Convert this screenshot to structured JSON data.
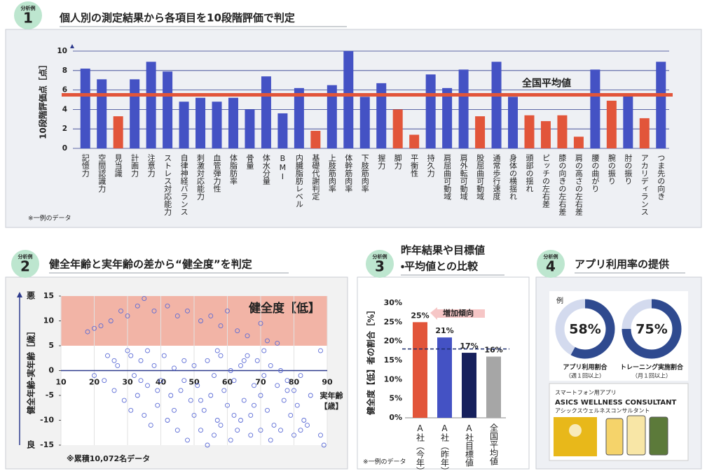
{
  "panels": [
    {
      "badge": "分析例",
      "number": "1",
      "title": [
        "個人別の測定結果から各項目を10段階評価で判定"
      ],
      "note": "※一例のデータ"
    },
    {
      "badge": "分析例",
      "number": "2",
      "title": [
        "健全年齢と実年齢の差から“健全度”を判定"
      ],
      "note": "※累積10,072名データ"
    },
    {
      "badge": "分析例",
      "number": "3",
      "title": [
        "昨年結果や目標値",
        "・平均値との比較"
      ],
      "note": "※一例のデータ"
    },
    {
      "badge": "分析例",
      "number": "4",
      "title": [
        "アプリ利用率の提供"
      ],
      "example": "例",
      "app": {
        "caption": "スマートフォン用アプリ",
        "name": "ASICS WELLNESS CONSULTANT",
        "name_kana": "アシックスウェルネスコンサルタント"
      }
    }
  ],
  "chart_data": [
    {
      "type": "bar",
      "ylabel": "10段階評価点［点］",
      "categories": [
        "記憶力",
        "空間認識力",
        "見当識",
        "計画力",
        "注意力",
        "ストレス対応能力",
        "自律神経バランス",
        "刺激対応能力",
        "血管弾力性",
        "体脂肪率",
        "骨量",
        "体水分量",
        "BMI",
        "内臓脂肪レベル",
        "基礎代謝判定",
        "上肢筋肉率",
        "体幹筋肉率",
        "下肢筋肉率",
        "握力",
        "脚力",
        "平衡性",
        "持久力",
        "肩屈曲可動域",
        "肩外転可動域",
        "股屈曲可動域",
        "通常歩行速度",
        "身体の横揺れ",
        "頭部の揺れ",
        "ピッチの左右差",
        "膝の向きの左右差",
        "肩の高さの左右差",
        "腰の曲がり",
        "腕の振り",
        "肘の振り",
        "アカリディランス",
        "つま先の向き"
      ],
      "values": [
        8.2,
        7.1,
        3.3,
        7.1,
        8.9,
        7.9,
        4.8,
        5.2,
        4.8,
        5.2,
        4.0,
        7.4,
        3.6,
        6.2,
        1.8,
        6.5,
        10,
        5.3,
        6.7,
        4.0,
        1.4,
        7.6,
        6.2,
        8.1,
        3.3,
        8.9,
        5.3,
        3.4,
        2.8,
        3.4,
        1.2,
        8.1,
        4.9,
        5.4,
        3.1,
        8.9
      ],
      "colors": [
        "#4452c4",
        "#4452c4",
        "#e2553a",
        "#4452c4",
        "#4452c4",
        "#4452c4",
        "#4452c4",
        "#4452c4",
        "#4452c4",
        "#4452c4",
        "#4452c4",
        "#4452c4",
        "#4452c4",
        "#4452c4",
        "#e2553a",
        "#4452c4",
        "#4452c4",
        "#4452c4",
        "#4452c4",
        "#e2553a",
        "#e2553a",
        "#4452c4",
        "#4452c4",
        "#4452c4",
        "#e2553a",
        "#4452c4",
        "#4452c4",
        "#e2553a",
        "#e2553a",
        "#e2553a",
        "#e2553a",
        "#4452c4",
        "#e2553a",
        "#4452c4",
        "#e2553a",
        "#4452c4"
      ],
      "ylim": [
        0,
        10
      ],
      "yticks": [
        0,
        2,
        4,
        6,
        8,
        10
      ],
      "grid": true,
      "reference_line": {
        "value": 5.5,
        "label": "全国平均値",
        "color": "#e2553a",
        "dashed": false
      }
    },
    {
      "type": "scatter",
      "ylabel": "健全年齢-実年齢［歳］",
      "y_top_label": "悪",
      "y_bottom_label": "良",
      "xlabel": [
        "実年齢",
        "【歳】"
      ],
      "color": "#5b6bd6",
      "band": {
        "range": [
          5,
          15
        ],
        "label": "健全度【低】",
        "color": "#f2b4a6"
      },
      "x": [
        20,
        22,
        18,
        25,
        28,
        30,
        33,
        35,
        38,
        42,
        45,
        48,
        52,
        55,
        58,
        60,
        63,
        66,
        70,
        72,
        75,
        88,
        24,
        27,
        30,
        32,
        34,
        36,
        38,
        40,
        41,
        43,
        44,
        46,
        47,
        49,
        50,
        51,
        53,
        54,
        55,
        56,
        57,
        58,
        59,
        60,
        61,
        62,
        63,
        64,
        65,
        66,
        67,
        68,
        69,
        70,
        71,
        72,
        73,
        74,
        75,
        76,
        77,
        78,
        79,
        80,
        81,
        82,
        83,
        85,
        88,
        89,
        23,
        26,
        29,
        31,
        33,
        35,
        37,
        39,
        42,
        45,
        48,
        50,
        52,
        54,
        56,
        58,
        61,
        64,
        67,
        70,
        73,
        76,
        80,
        84,
        36,
        39,
        44,
        47,
        52,
        57,
        62,
        65,
        68,
        71,
        78,
        82,
        20,
        26,
        31,
        34
      ],
      "y": [
        8.5,
        9,
        7.8,
        10,
        12,
        11,
        13,
        14.5,
        12,
        13,
        11,
        12,
        10,
        11,
        9,
        12,
        8,
        7,
        9.5,
        6,
        5.5,
        4,
        3,
        1,
        4,
        -1,
        2,
        -3,
        1,
        -2,
        3,
        -5,
        0.5,
        -4,
        2,
        -6,
        1,
        -3,
        -8,
        2,
        -5,
        -1,
        -10,
        3,
        -4,
        -7,
        0,
        -2,
        -12,
        1,
        -6,
        3,
        -9,
        -3,
        2,
        -5,
        -1,
        -8,
        1,
        -11,
        -3,
        0,
        -6,
        -2,
        -9,
        -4,
        -7,
        -1,
        -10,
        -5,
        -13,
        -15,
        -2,
        -4,
        -6,
        -8,
        -5,
        -9,
        -11,
        -7,
        -10,
        -12,
        -14,
        -9,
        -12,
        -15,
        -13,
        -11,
        -14,
        -10,
        -13,
        -12,
        -14,
        -12,
        -13,
        -11,
        4,
        -4,
        -8,
        -2,
        -6,
        4,
        -9,
        2,
        -7,
        4,
        -4,
        -12,
        -1,
        2,
        3,
        -2
      ],
      "xlim": [
        10,
        90
      ],
      "xticks": [
        10,
        20,
        30,
        40,
        50,
        60,
        70,
        80,
        90
      ],
      "ylim": [
        -15,
        15
      ],
      "yticks": [
        -15,
        -10,
        -5,
        0,
        5,
        10,
        15
      ]
    },
    {
      "type": "bar",
      "ylabel": "健全度【低】者の割合［%］",
      "categories": [
        "A社（今年）",
        "A社（昨年）",
        "A社目標値",
        "全国平均値"
      ],
      "values": [
        25,
        21,
        17,
        16
      ],
      "value_labels": [
        "25%",
        "21%",
        "17%",
        "16%"
      ],
      "colors": [
        "#e2553a",
        "#4452c4",
        "#16205c",
        "#a6a6a6"
      ],
      "ylim": [
        0,
        30
      ],
      "yticks": [
        {
          "value": 0,
          "label": "0%"
        },
        {
          "value": 5,
          "label": "5%"
        },
        {
          "value": 10,
          "label": "10%"
        },
        {
          "value": 15,
          "label": "15%"
        },
        {
          "value": 20,
          "label": "20%"
        },
        {
          "value": 25,
          "label": "25%"
        },
        {
          "value": 30,
          "label": "30%"
        }
      ],
      "grid": false,
      "reference_line": {
        "value": 18,
        "color": "#1f2f6e",
        "dashed": true
      },
      "annotation": "増加傾向"
    },
    {
      "type": "donut",
      "title": "アプリ利用割合",
      "subtitle": "（週１回以上）",
      "values": [
        58
      ],
      "value_labels": [
        "58%"
      ],
      "max": 100,
      "color": "#2f4a8f",
      "track_color": "#d3daee"
    },
    {
      "type": "donut",
      "title": "トレーニング実施割合",
      "subtitle": "（月１回以上）",
      "values": [
        75
      ],
      "value_labels": [
        "75%"
      ],
      "max": 100,
      "color": "#2f4a8f",
      "track_color": "#d3daee"
    }
  ]
}
